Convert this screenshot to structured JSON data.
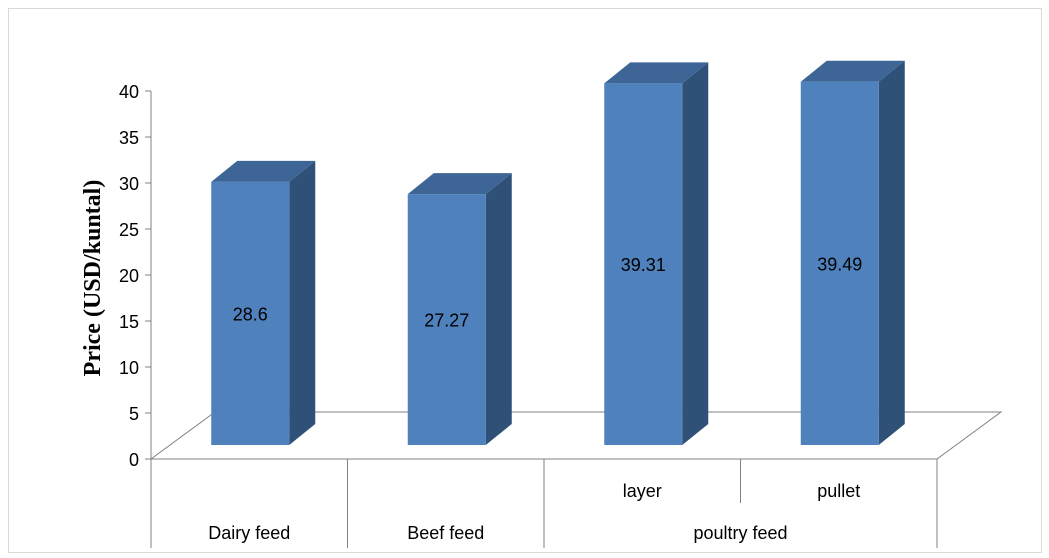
{
  "chart_data": {
    "type": "bar",
    "ylabel": "Price (USD/kuntal)",
    "xlabel": "",
    "ylim": [
      0,
      40
    ],
    "yticks": [
      0,
      5,
      10,
      15,
      20,
      25,
      30,
      35,
      40
    ],
    "categories": [
      "Dairy feed",
      "Beef feed",
      "layer",
      "pullet"
    ],
    "groups": [
      {
        "label": "Dairy feed",
        "members": [
          "Dairy feed"
        ]
      },
      {
        "label": "Beef feed",
        "members": [
          "Beef feed"
        ]
      },
      {
        "label": "poultry feed",
        "members": [
          "layer",
          "pullet"
        ]
      }
    ],
    "values": [
      28.6,
      27.27,
      39.31,
      39.49
    ],
    "data_labels": [
      "28.6",
      "27.27",
      "39.31",
      "39.49"
    ],
    "grid": false,
    "style": "3d-column",
    "colors": {
      "front": "#4f81bd",
      "side": "#2f5077",
      "top": "#3d6696",
      "frame": "#d9d9d9",
      "axis": "#808080"
    }
  }
}
